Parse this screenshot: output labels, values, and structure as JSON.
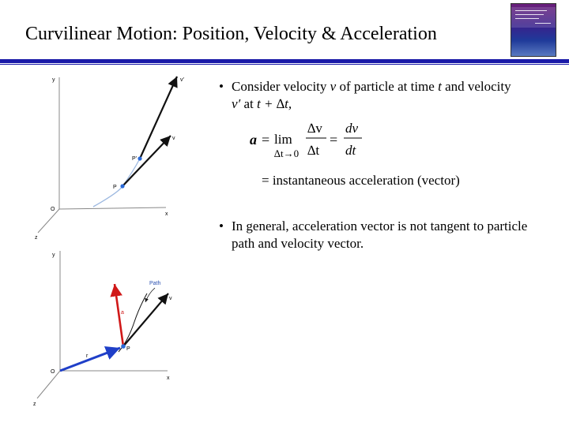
{
  "title": "Curvilinear Motion:  Position, Velocity & Acceleration",
  "cover": {
    "icon": "book-cover-image"
  },
  "bullets": [
    {
      "part1": "Consider velocity",
      "v_symbol": "v",
      "part2": "of particle at time",
      "t_symbol": "t",
      "part3": "and velocity",
      "vprime_symbol": "v′",
      "part4": "at",
      "t_plus": "t + ∆t,"
    },
    {
      "text": "In general, acceleration vector is not tangent to particle path and velocity vector."
    }
  ],
  "equation": {
    "a_symbol": "a",
    "equals": "=",
    "lim": "lim",
    "lim_sub": "∆t→0",
    "num1": "∆v",
    "den1": "∆t",
    "num2": "dv",
    "den2": "dt",
    "result": "=  instantaneous acceleration (vector)"
  },
  "figure1": {
    "labels": {
      "y": "y",
      "x": "x",
      "z": "z",
      "o": "O",
      "p": "P",
      "pprime": "P′",
      "v": "v",
      "vprime": "v′"
    }
  },
  "figure2": {
    "labels": {
      "y": "y",
      "x": "x",
      "z": "z",
      "o": "O",
      "p": "P",
      "r": "r",
      "a": "a",
      "v": "v",
      "path": "Path"
    },
    "colors": {
      "r_vector": "#1f3fc8",
      "a_vector": "#d01818"
    }
  }
}
